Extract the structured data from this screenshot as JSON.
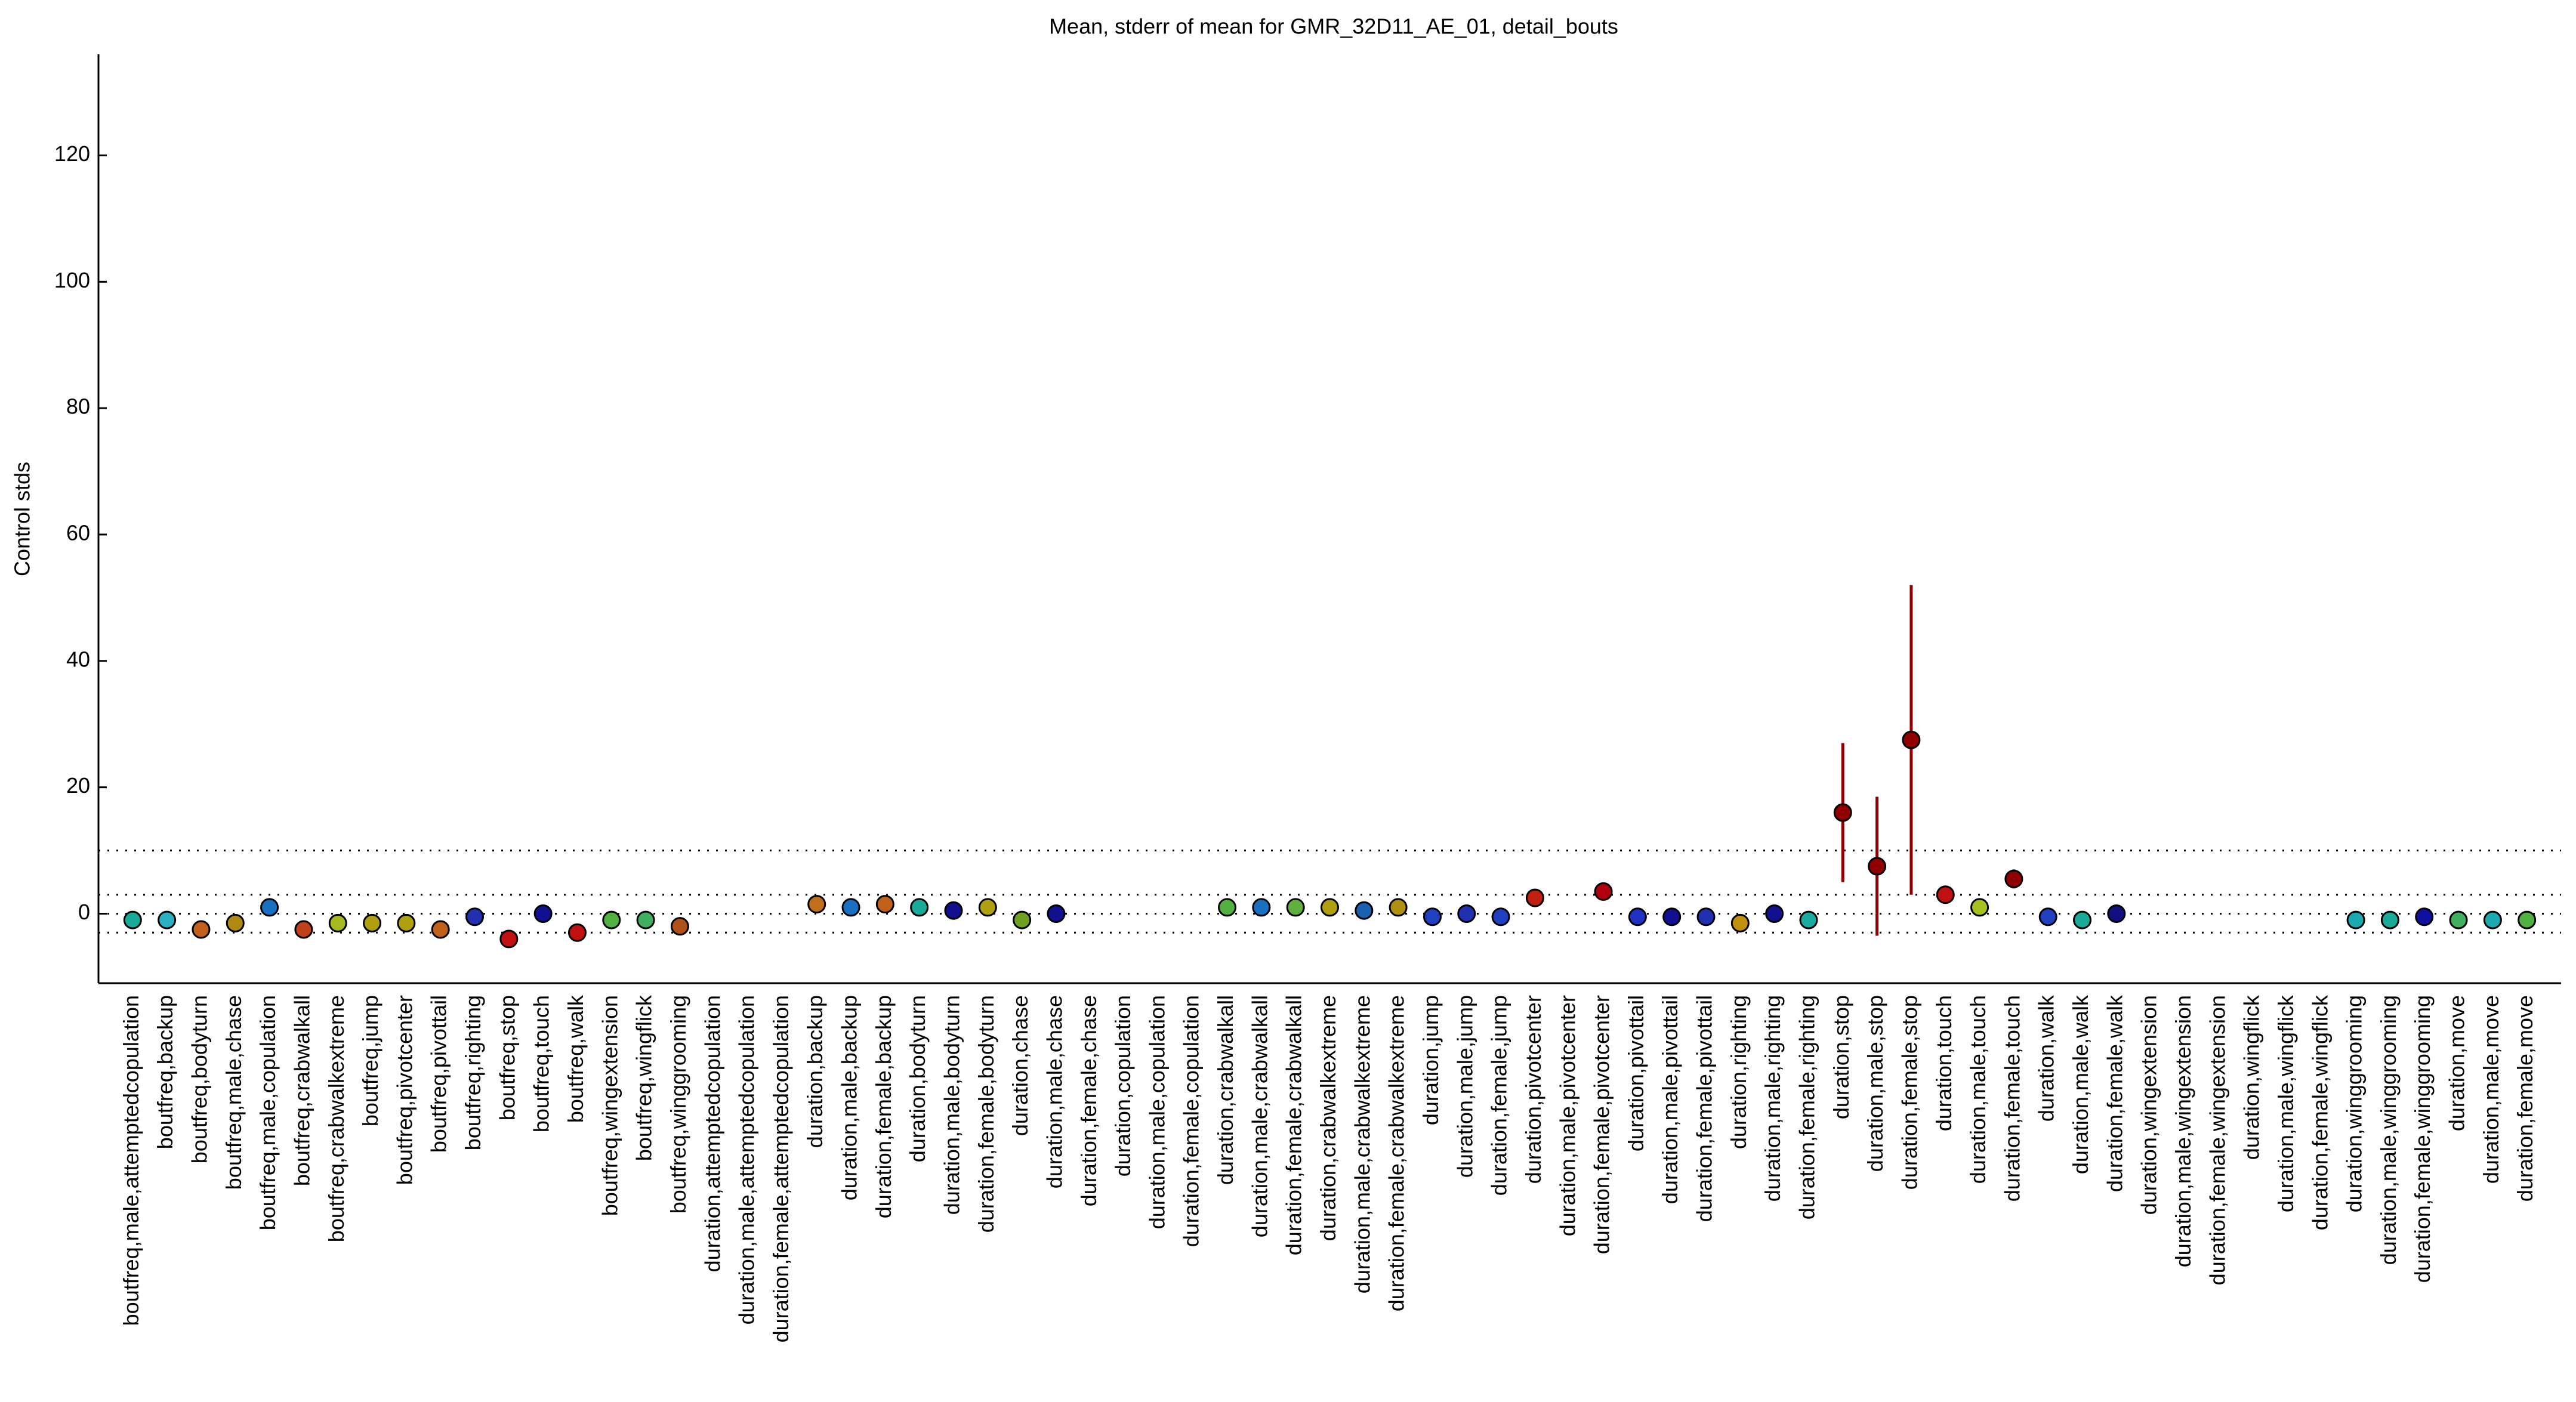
{
  "chart_data": {
    "type": "errorbar",
    "title": "Mean, stderr of mean for GMR_32D11_AE_01, detail_bouts",
    "y_label": "Control stds",
    "categories": [
      "boutfreq,male,attemptedcopulation",
      "boutfreq,backup",
      "boutfreq,bodyturn",
      "boutfreq,male,chase",
      "boutfreq,male,copulation",
      "boutfreq,crabwalkall",
      "boutfreq,crabwalkextreme",
      "boutfreq,jump",
      "boutfreq,pivotcenter",
      "boutfreq,pivottail",
      "boutfreq,righting",
      "boutfreq,stop",
      "boutfreq,touch",
      "boutfreq,walk",
      "boutfreq,wingextension",
      "boutfreq,wingflick",
      "boutfreq,winggrooming",
      "duration,attemptedcopulation",
      "duration,male,attemptedcopulation",
      "duration,female,attemptedcopulation",
      "duration,backup",
      "duration,male,backup",
      "duration,female,backup",
      "duration,bodyturn",
      "duration,male,bodyturn",
      "duration,female,bodyturn",
      "duration,chase",
      "duration,male,chase",
      "duration,female,chase",
      "duration,copulation",
      "duration,male,copulation",
      "duration,female,copulation",
      "duration,crabwalkall",
      "duration,male,crabwalkall",
      "duration,female,crabwalkall",
      "duration,crabwalkextreme",
      "duration,male,crabwalkextreme",
      "duration,female,crabwalkextreme",
      "duration,jump",
      "duration,male,jump",
      "duration,female,jump",
      "duration,pivotcenter",
      "duration,male,pivotcenter",
      "duration,female,pivotcenter",
      "duration,pivottail",
      "duration,male,pivottail",
      "duration,female,pivottail",
      "duration,righting",
      "duration,male,righting",
      "duration,female,righting",
      "duration,stop",
      "duration,male,stop",
      "duration,female,stop",
      "duration,touch",
      "duration,male,touch",
      "duration,female,touch",
      "duration,walk",
      "duration,male,walk",
      "duration,female,walk",
      "duration,wingextension",
      "duration,male,wingextension",
      "duration,female,wingextension",
      "duration,wingflick",
      "duration,male,wingflick",
      "duration,female,wingflick",
      "duration,winggrooming",
      "duration,male,winggrooming",
      "duration,female,winggrooming",
      "duration,move",
      "duration,male,move",
      "duration,female,move"
    ],
    "values": [
      -1,
      -1,
      -2.5,
      -1.5,
      1,
      -2.5,
      -1.5,
      -1.5,
      -1.5,
      -2.5,
      -0.5,
      -4,
      0,
      -3,
      -1,
      -1,
      -2,
      null,
      null,
      null,
      1.5,
      1,
      1.5,
      1,
      0.5,
      1,
      -1,
      0,
      null,
      null,
      null,
      null,
      1,
      1,
      1,
      1,
      0.5,
      1,
      -0.5,
      0,
      -0.5,
      2.5,
      null,
      3.5,
      -0.5,
      -0.5,
      -0.5,
      -1.5,
      0,
      -1,
      16,
      7.5,
      27.5,
      3,
      1,
      5.5,
      -0.5,
      -1,
      0,
      null,
      null,
      null,
      null,
      null,
      null,
      -1,
      -1,
      -0.5,
      -1,
      -1,
      -1
    ],
    "errors": [
      0.5,
      0.5,
      0.5,
      0.5,
      1,
      0.5,
      0.5,
      0.5,
      0.5,
      0.5,
      0.5,
      0.8,
      0.8,
      0.8,
      0.5,
      0.5,
      0.5,
      null,
      null,
      null,
      0.5,
      0.5,
      0.5,
      0.5,
      0.5,
      0.5,
      0.5,
      0.5,
      null,
      null,
      null,
      null,
      0.5,
      0.5,
      0.5,
      0.5,
      0.5,
      0.5,
      0.5,
      0.5,
      0.5,
      0.8,
      null,
      1,
      0.5,
      0.5,
      0.5,
      0.5,
      0.5,
      0.5,
      11,
      11,
      24.5,
      1,
      0.5,
      1.5,
      0.5,
      0.5,
      0.5,
      null,
      null,
      null,
      null,
      null,
      null,
      0.5,
      0.5,
      0.5,
      0.5,
      0.5,
      0.5
    ],
    "colors": [
      "#1aaa9a",
      "#2ab0c0",
      "#c0601a",
      "#b08a10",
      "#1a70c0",
      "#c0401a",
      "#a8b820",
      "#b0a010",
      "#b0a010",
      "#c0601a",
      "#2030b0",
      "#c01010",
      "#101090",
      "#c01010",
      "#50b040",
      "#40b060",
      "#b0501a",
      "#999999",
      "#999999",
      "#999999",
      "#c0701a",
      "#1a70c0",
      "#c0601a",
      "#1aaa9a",
      "#101090",
      "#b0a010",
      "#70a020",
      "#101090",
      "#999999",
      "#999999",
      "#999999",
      "#999999",
      "#50b040",
      "#1a70c0",
      "#60b040",
      "#b0a010",
      "#1a60b0",
      "#b09010",
      "#2040c0",
      "#2030b0",
      "#2040c0",
      "#c02010",
      "#999999",
      "#b00010",
      "#2030c0",
      "#101090",
      "#2030b0",
      "#c09010",
      "#101090",
      "#1aaaa0",
      "#900000",
      "#900000",
      "#900000",
      "#c01010",
      "#a8c020",
      "#900000",
      "#2040c0",
      "#1aaa9a",
      "#101080",
      "#999999",
      "#999999",
      "#999999",
      "#999999",
      "#999999",
      "#999999",
      "#1aaab0",
      "#1aaa9a",
      "#1010a0",
      "#40b060",
      "#1aaab0",
      "#50b040"
    ],
    "ylim": [
      -11,
      136
    ],
    "yticks": [
      0,
      20,
      40,
      60,
      80,
      100,
      120
    ],
    "reference_lines": [
      -3,
      0,
      3,
      10
    ]
  }
}
